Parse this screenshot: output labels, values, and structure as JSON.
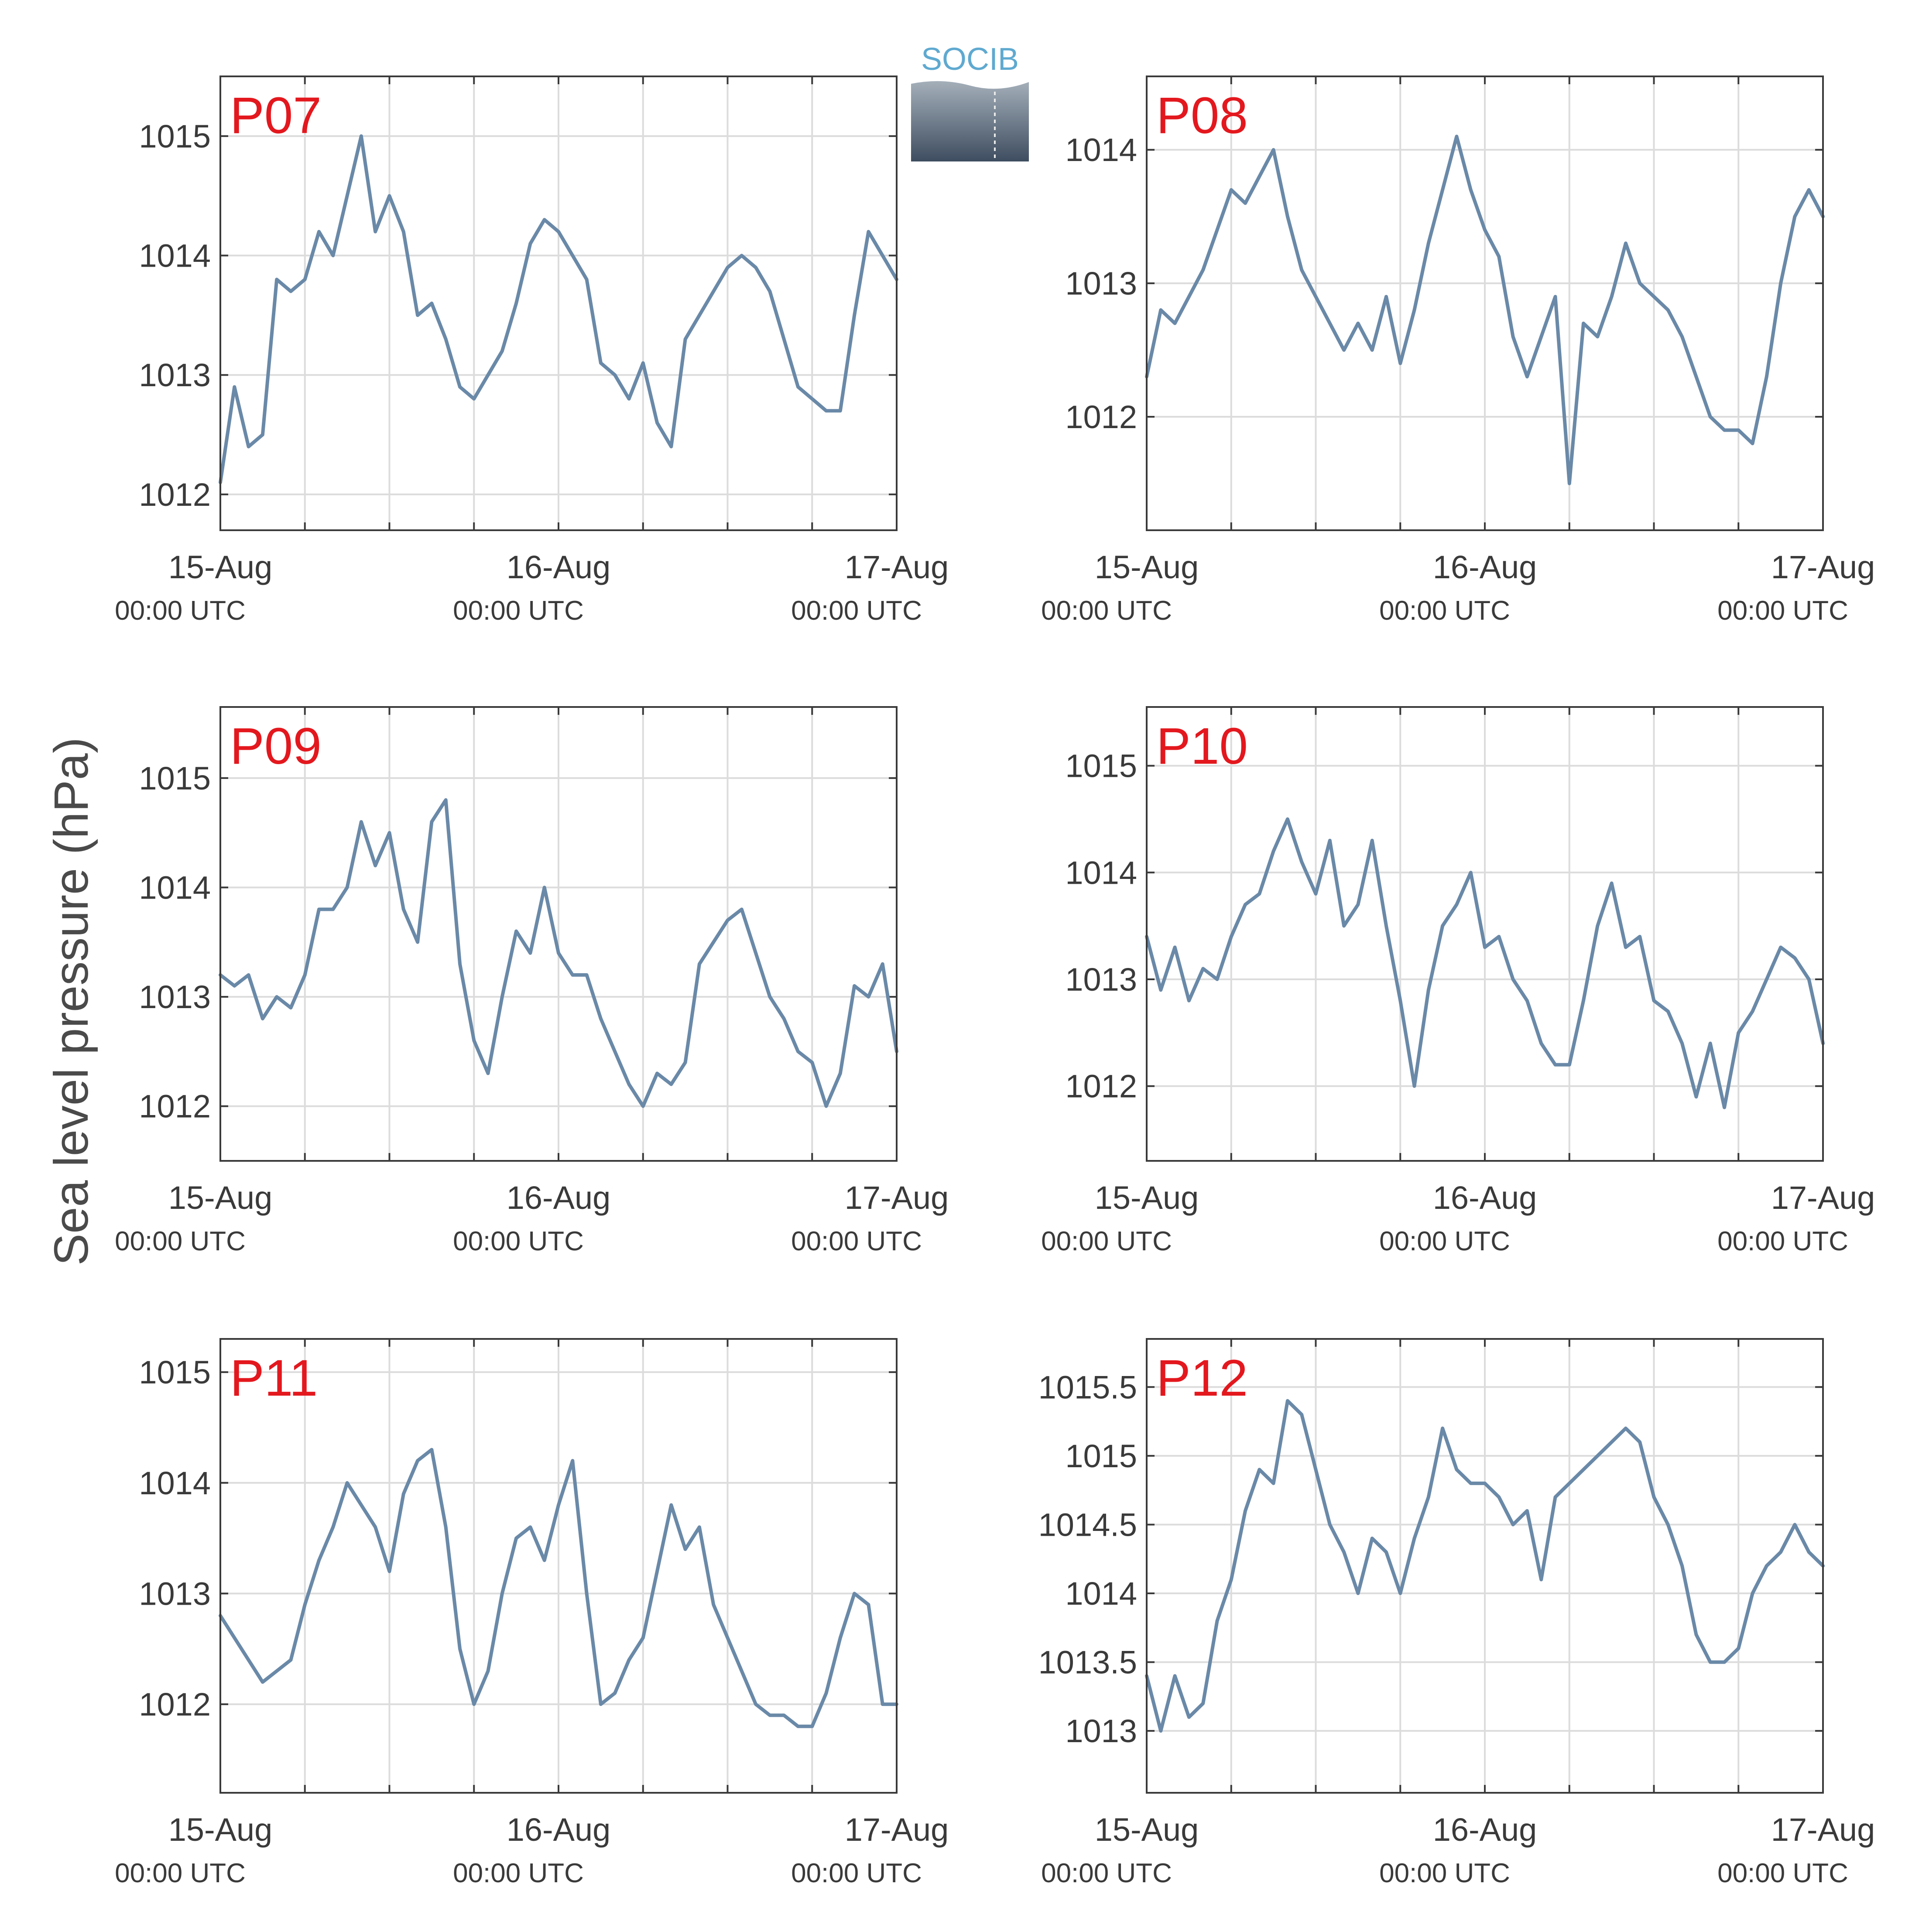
{
  "figure": {
    "ylabel": "Sea level pressure (hPa)",
    "logo_text": "SOCIB",
    "x_ticks": [
      {
        "day": "15-Aug",
        "time": "00:00 UTC"
      },
      {
        "day": "16-Aug",
        "time": "00:00 UTC"
      },
      {
        "day": "17-Aug",
        "time": "00:00 UTC"
      }
    ],
    "colors": {
      "line": "#6a89a8",
      "panel_label": "#e3181e",
      "axis": "#3a3a3a",
      "grid": "#dcdcdc",
      "text": "#3a3a3a"
    }
  },
  "chart_data": [
    {
      "type": "line",
      "title": "P07",
      "xlim": [
        0,
        48
      ],
      "ylim": [
        1011.7,
        1015.5
      ],
      "yticks": [
        1012,
        1013,
        1014,
        1015
      ],
      "ytick_labels": [
        "1012",
        "1013",
        "1014",
        "1015"
      ],
      "x_hours": [
        0,
        1,
        2,
        3,
        4,
        5,
        6,
        7,
        8,
        9,
        10,
        11,
        12,
        13,
        14,
        15,
        16,
        17,
        18,
        19,
        20,
        21,
        22,
        23,
        24,
        25,
        26,
        27,
        28,
        29,
        30,
        31,
        32,
        33,
        34,
        35,
        36,
        37,
        38,
        39,
        40,
        41,
        42,
        43,
        44,
        45,
        46,
        47,
        48
      ],
      "values": [
        1012.1,
        1012.9,
        1012.4,
        1012.5,
        1013.8,
        1013.7,
        1013.8,
        1014.2,
        1014.0,
        1014.5,
        1015.0,
        1014.2,
        1014.5,
        1014.2,
        1013.5,
        1013.6,
        1013.3,
        1012.9,
        1012.8,
        1013.0,
        1013.2,
        1013.6,
        1014.1,
        1014.3,
        1014.2,
        1014.0,
        1013.8,
        1013.1,
        1013.0,
        1012.8,
        1013.1,
        1012.6,
        1012.4,
        1013.3,
        1013.5,
        1013.7,
        1013.9,
        1014.0,
        1013.9,
        1013.7,
        1013.3,
        1012.9,
        1012.8,
        1012.7,
        1012.7,
        1013.5,
        1014.2,
        1014.0,
        1013.8
      ]
    },
    {
      "type": "line",
      "title": "P08",
      "xlim": [
        0,
        48
      ],
      "ylim": [
        1011.15,
        1014.55
      ],
      "yticks": [
        1012,
        1013,
        1014
      ],
      "ytick_labels": [
        "1012",
        "1013",
        "1014"
      ],
      "x_hours": [
        0,
        1,
        2,
        3,
        4,
        5,
        6,
        7,
        8,
        9,
        10,
        11,
        12,
        13,
        14,
        15,
        16,
        17,
        18,
        19,
        20,
        21,
        22,
        23,
        24,
        25,
        26,
        27,
        28,
        29,
        30,
        31,
        32,
        33,
        34,
        35,
        36,
        37,
        38,
        39,
        40,
        41,
        42,
        43,
        44,
        45,
        46,
        47,
        48
      ],
      "values": [
        1012.3,
        1012.8,
        1012.7,
        1012.9,
        1013.1,
        1013.4,
        1013.7,
        1013.6,
        1013.8,
        1014.0,
        1013.5,
        1013.1,
        1012.9,
        1012.7,
        1012.5,
        1012.7,
        1012.5,
        1012.9,
        1012.4,
        1012.8,
        1013.3,
        1013.7,
        1014.1,
        1013.7,
        1013.4,
        1013.2,
        1012.6,
        1012.3,
        1012.6,
        1012.9,
        1011.5,
        1012.7,
        1012.6,
        1012.9,
        1013.3,
        1013.0,
        1012.9,
        1012.8,
        1012.6,
        1012.3,
        1012.0,
        1011.9,
        1011.9,
        1011.8,
        1012.3,
        1013.0,
        1013.5,
        1013.7,
        1013.5
      ]
    },
    {
      "type": "line",
      "title": "P09",
      "xlim": [
        0,
        48
      ],
      "ylim": [
        1011.5,
        1015.65
      ],
      "yticks": [
        1012,
        1013,
        1014,
        1015
      ],
      "ytick_labels": [
        "1012",
        "1013",
        "1014",
        "1015"
      ],
      "x_hours": [
        0,
        1,
        2,
        3,
        4,
        5,
        6,
        7,
        8,
        9,
        10,
        11,
        12,
        13,
        14,
        15,
        16,
        17,
        18,
        19,
        20,
        21,
        22,
        23,
        24,
        25,
        26,
        27,
        28,
        29,
        30,
        31,
        32,
        33,
        34,
        35,
        36,
        37,
        38,
        39,
        40,
        41,
        42,
        43,
        44,
        45,
        46,
        47,
        48
      ],
      "values": [
        1013.2,
        1013.1,
        1013.2,
        1012.8,
        1013.0,
        1012.9,
        1013.2,
        1013.8,
        1013.8,
        1014.0,
        1014.6,
        1014.2,
        1014.5,
        1013.8,
        1013.5,
        1014.6,
        1014.8,
        1013.3,
        1012.6,
        1012.3,
        1013.0,
        1013.6,
        1013.4,
        1014.0,
        1013.4,
        1013.2,
        1013.2,
        1012.8,
        1012.5,
        1012.2,
        1012.0,
        1012.3,
        1012.2,
        1012.4,
        1013.3,
        1013.5,
        1013.7,
        1013.8,
        1013.4,
        1013.0,
        1012.8,
        1012.5,
        1012.4,
        1012.0,
        1012.3,
        1013.1,
        1013.0,
        1013.3,
        1012.5
      ]
    },
    {
      "type": "line",
      "title": "P10",
      "xlim": [
        0,
        48
      ],
      "ylim": [
        1011.3,
        1015.55
      ],
      "yticks": [
        1012,
        1013,
        1014,
        1015
      ],
      "ytick_labels": [
        "1012",
        "1013",
        "1014",
        "1015"
      ],
      "x_hours": [
        0,
        1,
        2,
        3,
        4,
        5,
        6,
        7,
        8,
        9,
        10,
        11,
        12,
        13,
        14,
        15,
        16,
        17,
        18,
        19,
        20,
        21,
        22,
        23,
        24,
        25,
        26,
        27,
        28,
        29,
        30,
        31,
        32,
        33,
        34,
        35,
        36,
        37,
        38,
        39,
        40,
        41,
        42,
        43,
        44,
        45,
        46,
        47,
        48
      ],
      "values": [
        1013.4,
        1012.9,
        1013.3,
        1012.8,
        1013.1,
        1013.0,
        1013.4,
        1013.7,
        1013.8,
        1014.2,
        1014.5,
        1014.1,
        1013.8,
        1014.3,
        1013.5,
        1013.7,
        1014.3,
        1013.5,
        1012.8,
        1012.0,
        1012.9,
        1013.5,
        1013.7,
        1014.0,
        1013.3,
        1013.4,
        1013.0,
        1012.8,
        1012.4,
        1012.2,
        1012.2,
        1012.8,
        1013.5,
        1013.9,
        1013.3,
        1013.4,
        1012.8,
        1012.7,
        1012.4,
        1011.9,
        1012.4,
        1011.8,
        1012.5,
        1012.7,
        1013.0,
        1013.3,
        1013.2,
        1013.0,
        1012.4
      ]
    },
    {
      "type": "line",
      "title": "P11",
      "xlim": [
        0,
        48
      ],
      "ylim": [
        1011.2,
        1015.3
      ],
      "yticks": [
        1012,
        1013,
        1014,
        1015
      ],
      "ytick_labels": [
        "1012",
        "1013",
        "1014",
        "1015"
      ],
      "x_hours": [
        0,
        1,
        2,
        3,
        4,
        5,
        6,
        7,
        8,
        9,
        10,
        11,
        12,
        13,
        14,
        15,
        16,
        17,
        18,
        19,
        20,
        21,
        22,
        23,
        24,
        25,
        26,
        27,
        28,
        29,
        30,
        31,
        32,
        33,
        34,
        35,
        36,
        37,
        38,
        39,
        40,
        41,
        42,
        43,
        44,
        45,
        46,
        47,
        48
      ],
      "values": [
        1012.8,
        1012.6,
        1012.4,
        1012.2,
        1012.3,
        1012.4,
        1012.9,
        1013.3,
        1013.6,
        1014.0,
        1013.8,
        1013.6,
        1013.2,
        1013.9,
        1014.2,
        1014.3,
        1013.6,
        1012.5,
        1012.0,
        1012.3,
        1013.0,
        1013.5,
        1013.6,
        1013.3,
        1013.8,
        1014.2,
        1013.0,
        1012.0,
        1012.1,
        1012.4,
        1012.6,
        1013.2,
        1013.8,
        1013.4,
        1013.6,
        1012.9,
        1012.6,
        1012.3,
        1012.0,
        1011.9,
        1011.9,
        1011.8,
        1011.8,
        1012.1,
        1012.6,
        1013.0,
        1012.9,
        1012.0,
        1012.0
      ]
    },
    {
      "type": "line",
      "title": "P12",
      "xlim": [
        0,
        48
      ],
      "ylim": [
        1012.55,
        1015.85
      ],
      "yticks": [
        1013,
        1013.5,
        1014,
        1014.5,
        1015,
        1015.5
      ],
      "ytick_labels": [
        "1013",
        "1013.5",
        "1014",
        "1014.5",
        "1015",
        "1015.5"
      ],
      "x_hours": [
        0,
        1,
        2,
        3,
        4,
        5,
        6,
        7,
        8,
        9,
        10,
        11,
        12,
        13,
        14,
        15,
        16,
        17,
        18,
        19,
        20,
        21,
        22,
        23,
        24,
        25,
        26,
        27,
        28,
        29,
        30,
        31,
        32,
        33,
        34,
        35,
        36,
        37,
        38,
        39,
        40,
        41,
        42,
        43,
        44,
        45,
        46,
        47,
        48
      ],
      "values": [
        1013.4,
        1013.0,
        1013.4,
        1013.1,
        1013.2,
        1013.8,
        1014.1,
        1014.6,
        1014.9,
        1014.8,
        1015.4,
        1015.3,
        1014.9,
        1014.5,
        1014.3,
        1014.0,
        1014.4,
        1014.3,
        1014.0,
        1014.4,
        1014.7,
        1015.2,
        1014.9,
        1014.8,
        1014.8,
        1014.7,
        1014.5,
        1014.6,
        1014.1,
        1014.7,
        1014.8,
        1014.9,
        1015.0,
        1015.1,
        1015.2,
        1015.1,
        1014.7,
        1014.5,
        1014.2,
        1013.7,
        1013.5,
        1013.5,
        1013.6,
        1014.0,
        1014.2,
        1014.3,
        1014.5,
        1014.3,
        1014.2
      ]
    }
  ]
}
